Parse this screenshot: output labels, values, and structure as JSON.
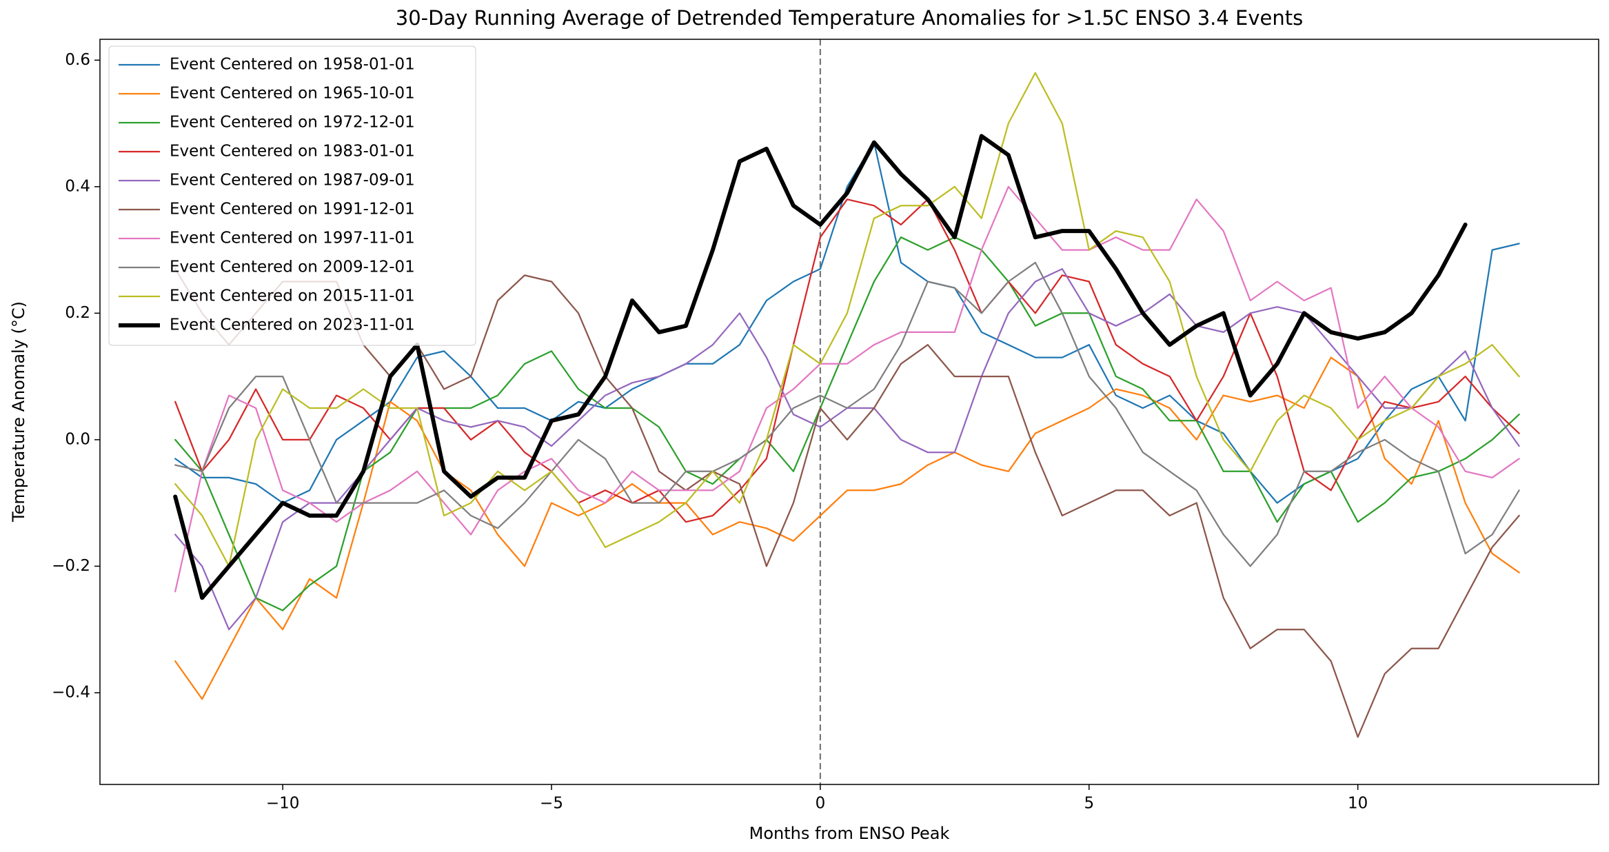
{
  "chart_data": {
    "type": "line",
    "title": "30-Day Running Average of Detrended Temperature Anomalies for >1.5C ENSO 3.4 Events",
    "x_label": "Months from ENSO Peak",
    "y_label": "Temperature Anomaly (°C)",
    "xlim": [
      -13.4,
      14.48
    ],
    "ylim": [
      -0.545,
      0.633
    ],
    "xticks": [
      {
        "value": -10,
        "label": "−10"
      },
      {
        "value": -5,
        "label": "−5"
      },
      0,
      5,
      10
    ],
    "yticks": [
      {
        "value": -0.4,
        "label": "−0.4"
      },
      {
        "value": -0.2,
        "label": "−0.2"
      },
      {
        "value": 0,
        "label": "0.0"
      },
      0.2,
      0.4,
      0.6
    ],
    "vline_x": 0,
    "legend": "upper left",
    "grid": false,
    "x": [
      -12,
      -11.5,
      -11,
      -10.5,
      -10,
      -9.5,
      -9,
      -8.5,
      -8,
      -7.5,
      -7,
      -6.5,
      -6,
      -5.5,
      -5,
      -4.5,
      -4,
      -3.5,
      -3,
      -2.5,
      -2,
      -1.5,
      -1,
      -0.5,
      0,
      0.5,
      1,
      1.5,
      2,
      2.5,
      3,
      3.5,
      4,
      4.5,
      5,
      5.5,
      6,
      6.5,
      7,
      7.5,
      8,
      8.5,
      9,
      9.5,
      10,
      10.5,
      11,
      11.5,
      12,
      12.5,
      13
    ],
    "series": [
      {
        "name": "Event Centered on 1958-01-01",
        "color": "#1f77b4",
        "linewidth": 1.5,
        "values": [
          -0.03,
          -0.06,
          -0.06,
          -0.07,
          -0.1,
          -0.08,
          0,
          0.03,
          0.06,
          0.13,
          0.14,
          0.1,
          0.05,
          0.05,
          0.03,
          0.06,
          0.05,
          0.08,
          0.1,
          0.12,
          0.12,
          0.15,
          0.22,
          0.25,
          0.27,
          0.4,
          0.47,
          0.28,
          0.25,
          0.24,
          0.17,
          0.15,
          0.13,
          0.13,
          0.15,
          0.07,
          0.05,
          0.07,
          0.03,
          0.01,
          -0.05,
          -0.1,
          -0.07,
          -0.05,
          -0.03,
          0.03,
          0.08,
          0.1,
          0.03,
          0.3,
          0.31
        ]
      },
      {
        "name": "Event Centered on 1965-10-01",
        "color": "#ff7f0e",
        "linewidth": 1.5,
        "values": [
          -0.35,
          -0.41,
          -0.33,
          -0.25,
          -0.3,
          -0.22,
          -0.25,
          -0.1,
          0.06,
          0.03,
          -0.05,
          -0.08,
          -0.15,
          -0.2,
          -0.1,
          -0.12,
          -0.1,
          -0.07,
          -0.1,
          -0.1,
          -0.15,
          -0.13,
          -0.14,
          -0.16,
          -0.12,
          -0.08,
          -0.08,
          -0.07,
          -0.04,
          -0.02,
          -0.04,
          -0.05,
          0.01,
          0.03,
          0.05,
          0.08,
          0.07,
          0.05,
          0,
          0.07,
          0.06,
          0.07,
          0.05,
          0.13,
          0.1,
          -0.03,
          -0.07,
          0.03,
          -0.1,
          -0.18,
          -0.21
        ]
      },
      {
        "name": "Event Centered on 1972-12-01",
        "color": "#2ca02c",
        "linewidth": 1.5,
        "values": [
          0,
          -0.05,
          -0.15,
          -0.25,
          -0.27,
          -0.23,
          -0.2,
          -0.05,
          -0.02,
          0.05,
          0.05,
          0.05,
          0.07,
          0.12,
          0.14,
          0.08,
          0.05,
          0.05,
          0.02,
          -0.05,
          -0.07,
          -0.03,
          0,
          -0.05,
          0.05,
          0.15,
          0.25,
          0.32,
          0.3,
          0.32,
          0.3,
          0.25,
          0.18,
          0.2,
          0.2,
          0.1,
          0.08,
          0.03,
          0.03,
          -0.05,
          -0.05,
          -0.13,
          -0.07,
          -0.05,
          -0.13,
          -0.1,
          -0.06,
          -0.05,
          -0.03,
          0,
          0.04
        ]
      },
      {
        "name": "Event Centered on 1983-01-01",
        "color": "#d62728",
        "linewidth": 1.5,
        "values": [
          0.06,
          -0.05,
          0,
          0.08,
          0,
          0,
          0.07,
          0.05,
          0,
          0.05,
          0.05,
          0,
          0.03,
          -0.02,
          -0.05,
          -0.1,
          -0.08,
          -0.1,
          -0.08,
          -0.13,
          -0.12,
          -0.08,
          -0.03,
          0.15,
          0.32,
          0.38,
          0.37,
          0.34,
          0.38,
          0.3,
          0.2,
          0.25,
          0.2,
          0.26,
          0.25,
          0.15,
          0.12,
          0.1,
          0.03,
          0.1,
          0.2,
          0.1,
          -0.05,
          -0.08,
          0,
          0.06,
          0.05,
          0.06,
          0.1,
          0.05,
          0.01
        ]
      },
      {
        "name": "Event Centered on 1987-09-01",
        "color": "#9467bd",
        "linewidth": 1.5,
        "values": [
          -0.15,
          -0.2,
          -0.3,
          -0.25,
          -0.13,
          -0.1,
          -0.1,
          -0.05,
          0,
          0.05,
          0.03,
          0.02,
          0.03,
          0.02,
          -0.01,
          0.03,
          0.07,
          0.09,
          0.1,
          0.12,
          0.15,
          0.2,
          0.13,
          0.04,
          0.02,
          0.05,
          0.05,
          0,
          -0.02,
          -0.02,
          0.1,
          0.2,
          0.25,
          0.27,
          0.2,
          0.18,
          0.2,
          0.23,
          0.18,
          0.17,
          0.2,
          0.21,
          0.2,
          0.15,
          0.1,
          0.05,
          0.05,
          0.1,
          0.14,
          0.05,
          -0.01
        ]
      },
      {
        "name": "Event Centered on 1991-12-01",
        "color": "#8c564b",
        "linewidth": 1.5,
        "values": [
          0.27,
          0.2,
          0.15,
          0.2,
          0.25,
          0.25,
          0.25,
          0.15,
          0.1,
          0.15,
          0.08,
          0.1,
          0.22,
          0.26,
          0.25,
          0.2,
          0.1,
          0.05,
          -0.05,
          -0.08,
          -0.05,
          -0.07,
          -0.2,
          -0.1,
          0.05,
          0,
          0.05,
          0.12,
          0.15,
          0.1,
          0.1,
          0.1,
          -0.02,
          -0.12,
          -0.1,
          -0.08,
          -0.08,
          -0.12,
          -0.1,
          -0.25,
          -0.33,
          -0.3,
          -0.3,
          -0.35,
          -0.47,
          -0.37,
          -0.33,
          -0.33,
          -0.25,
          -0.17,
          -0.12
        ]
      },
      {
        "name": "Event Centered on 1997-11-01",
        "color": "#e377c2",
        "linewidth": 1.5,
        "values": [
          -0.24,
          -0.05,
          0.07,
          0.05,
          -0.08,
          -0.1,
          -0.13,
          -0.1,
          -0.08,
          -0.05,
          -0.1,
          -0.15,
          -0.08,
          -0.05,
          -0.03,
          -0.08,
          -0.1,
          -0.05,
          -0.08,
          -0.08,
          -0.08,
          -0.05,
          0.05,
          0.08,
          0.12,
          0.12,
          0.15,
          0.17,
          0.17,
          0.17,
          0.3,
          0.4,
          0.35,
          0.3,
          0.3,
          0.32,
          0.3,
          0.3,
          0.38,
          0.33,
          0.22,
          0.25,
          0.22,
          0.24,
          0.05,
          0.1,
          0.05,
          0.02,
          -0.05,
          -0.06,
          -0.03
        ]
      },
      {
        "name": "Event Centered on 2009-12-01",
        "color": "#7f7f7f",
        "linewidth": 1.5,
        "values": [
          -0.04,
          -0.05,
          0.05,
          0.1,
          0.1,
          0,
          -0.1,
          -0.1,
          -0.1,
          -0.1,
          -0.08,
          -0.12,
          -0.14,
          -0.1,
          -0.05,
          0,
          -0.03,
          -0.1,
          -0.1,
          -0.05,
          -0.05,
          -0.03,
          0,
          0.05,
          0.07,
          0.05,
          0.08,
          0.15,
          0.25,
          0.24,
          0.2,
          0.25,
          0.28,
          0.2,
          0.1,
          0.05,
          -0.02,
          -0.05,
          -0.08,
          -0.15,
          -0.2,
          -0.15,
          -0.05,
          -0.05,
          -0.02,
          0,
          -0.03,
          -0.05,
          -0.18,
          -0.15,
          -0.08
        ]
      },
      {
        "name": "Event Centered on 2015-11-01",
        "color": "#bcbd22",
        "linewidth": 1.5,
        "values": [
          -0.07,
          -0.12,
          -0.2,
          0,
          0.08,
          0.05,
          0.05,
          0.08,
          0.05,
          0.05,
          -0.12,
          -0.1,
          -0.05,
          -0.08,
          -0.05,
          -0.1,
          -0.17,
          -0.15,
          -0.13,
          -0.1,
          -0.05,
          -0.1,
          0,
          0.15,
          0.12,
          0.2,
          0.35,
          0.37,
          0.37,
          0.4,
          0.35,
          0.5,
          0.58,
          0.5,
          0.3,
          0.33,
          0.32,
          0.25,
          0.1,
          0,
          -0.05,
          0.03,
          0.07,
          0.05,
          0,
          0.03,
          0.05,
          0.1,
          0.12,
          0.15,
          0.1
        ]
      },
      {
        "name": "Event Centered on 2023-11-01",
        "color": "#000000",
        "linewidth": 4,
        "values": [
          -0.09,
          -0.25,
          -0.2,
          -0.15,
          -0.1,
          -0.12,
          -0.12,
          -0.05,
          0.1,
          0.15,
          -0.05,
          -0.09,
          -0.06,
          -0.06,
          0.03,
          0.04,
          0.1,
          0.22,
          0.17,
          0.18,
          0.3,
          0.44,
          0.46,
          0.37,
          0.34,
          0.39,
          0.47,
          0.42,
          0.38,
          0.32,
          0.48,
          0.45,
          0.32,
          0.33,
          0.33,
          0.27,
          0.2,
          0.15,
          0.18,
          0.2,
          0.07,
          0.12,
          0.2,
          0.17,
          0.16,
          0.17,
          0.2,
          0.26,
          0.34,
          null,
          null
        ]
      }
    ]
  }
}
